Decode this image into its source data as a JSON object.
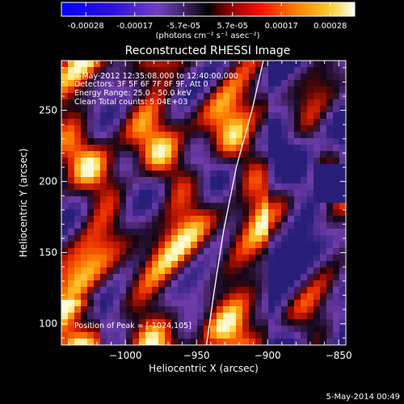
{
  "colorbar": {
    "ticks": [
      "-0.00028",
      "-0.00017",
      "-5.7e-05",
      "5.7e-05",
      "0.00017",
      "0.00028"
    ],
    "unit_label": "(photons cm⁻² s⁻¹ asec⁻²)"
  },
  "footer": {
    "timestamp": "5-May-2014 00:49"
  },
  "overlay": {
    "time_range": "4-May-2012 12:35:08.000 to 12:40:00.000",
    "detectors": "Detectors: 3F 5F 6F 7F 8F 9F, Att 0",
    "energy": "Energy Range: 25.0 - 50.0 keV",
    "clean": "Clean     Total counts: 5.04E+03",
    "peak": "Position of Peak = [-1024,105]"
  },
  "colors": {
    "background": "#000000",
    "axis": "#ffffff",
    "limb": "#ffffff"
  },
  "chart_data": {
    "type": "heatmap",
    "title": "Reconstructed RHESSI Image",
    "xlabel": "Heliocentric X (arcsec)",
    "ylabel": "Heliocentric Y (arcsec)",
    "xlim": [
      -1045,
      -845
    ],
    "ylim": [
      85,
      285
    ],
    "x_ticks": [
      -1000,
      -950,
      -900,
      -850
    ],
    "y_ticks": [
      100,
      150,
      200,
      250
    ],
    "colormap": "blue-purple-black-red-orange-yellow-white (bipolar)",
    "color_range": [
      -0.00028,
      0.00028
    ],
    "limb": [
      [
        -943,
        85
      ],
      [
        -938,
        120
      ],
      [
        -931,
        165
      ],
      [
        -922,
        210
      ],
      [
        -911,
        250
      ],
      [
        -903,
        285
      ]
    ],
    "peak_position": [
      -1024,
      105
    ],
    "grid": false
  }
}
